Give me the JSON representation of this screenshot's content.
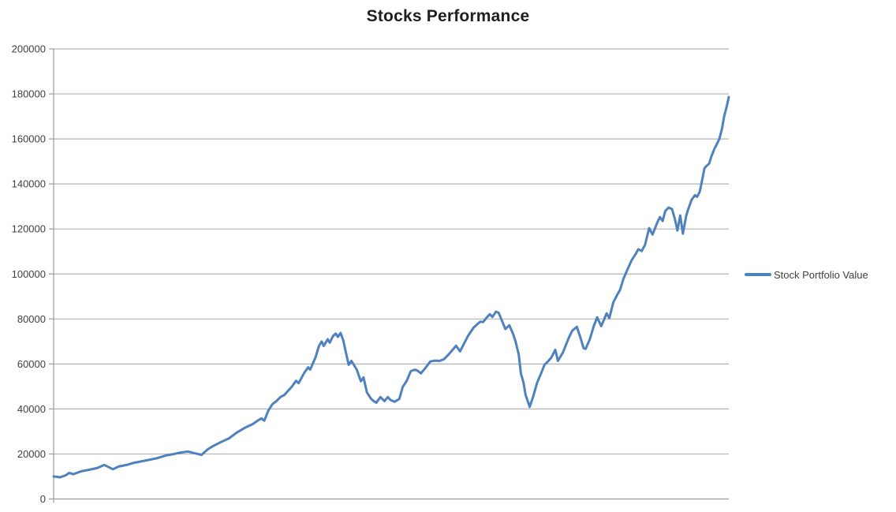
{
  "chart_data": {
    "type": "line",
    "title": "Stocks Performance",
    "xlabel": "",
    "ylabel": "",
    "grid": true,
    "legend_position": "right",
    "x_axis": {
      "tick_labels": []
    },
    "y_axis": {
      "min": 0,
      "max": 200000,
      "tick_step": 20000,
      "tick_labels": [
        "0",
        "20000",
        "40000",
        "60000",
        "80000",
        "100000",
        "120000",
        "140000",
        "160000",
        "180000",
        "200000"
      ]
    },
    "colors": {
      "background": "#ffffff",
      "line": "#4F81BD",
      "gridline": "#b3b3b3",
      "axis": "#9b9b9b",
      "tick_label": "#3f3f3f",
      "title": "#1f1f1f",
      "legend_text": "#3f3f3f"
    },
    "series": [
      {
        "name": "Stock Portfolio Value",
        "color": "#4F81BD",
        "x_unit": "percent-of-axis",
        "points": [
          [
            0,
            10000
          ],
          [
            0.6,
            9800
          ],
          [
            0.9,
            9600
          ],
          [
            1.8,
            10500
          ],
          [
            2.3,
            11600
          ],
          [
            2.9,
            11000
          ],
          [
            4.1,
            12300
          ],
          [
            5.3,
            13000
          ],
          [
            6.4,
            13700
          ],
          [
            7.5,
            15100
          ],
          [
            8.2,
            14100
          ],
          [
            8.8,
            13200
          ],
          [
            9.6,
            14400
          ],
          [
            10.8,
            15100
          ],
          [
            11.9,
            16100
          ],
          [
            13.1,
            16800
          ],
          [
            14.3,
            17500
          ],
          [
            15.4,
            18200
          ],
          [
            16.6,
            19300
          ],
          [
            17.8,
            20000
          ],
          [
            18.9,
            20700
          ],
          [
            19.9,
            21100
          ],
          [
            20.8,
            20400
          ],
          [
            21.9,
            19600
          ],
          [
            22.8,
            22000
          ],
          [
            23.6,
            23500
          ],
          [
            24.8,
            25300
          ],
          [
            26.0,
            27000
          ],
          [
            27.1,
            29500
          ],
          [
            28.3,
            31600
          ],
          [
            29.5,
            33300
          ],
          [
            30.3,
            35000
          ],
          [
            30.8,
            35800
          ],
          [
            31.2,
            34800
          ],
          [
            31.8,
            39300
          ],
          [
            32.4,
            42100
          ],
          [
            33.0,
            43500
          ],
          [
            33.6,
            45300
          ],
          [
            34.2,
            46300
          ],
          [
            34.7,
            48000
          ],
          [
            35.3,
            50000
          ],
          [
            35.9,
            52500
          ],
          [
            36.3,
            51500
          ],
          [
            37.1,
            56000
          ],
          [
            37.7,
            58500
          ],
          [
            38.0,
            57500
          ],
          [
            38.8,
            63000
          ],
          [
            39.3,
            68000
          ],
          [
            39.7,
            70000
          ],
          [
            40.0,
            68000
          ],
          [
            40.6,
            71000
          ],
          [
            40.9,
            69500
          ],
          [
            41.4,
            72500
          ],
          [
            41.8,
            73500
          ],
          [
            42.1,
            72000
          ],
          [
            42.5,
            73800
          ],
          [
            42.9,
            70500
          ],
          [
            43.3,
            65000
          ],
          [
            43.7,
            59600
          ],
          [
            44.1,
            61400
          ],
          [
            44.9,
            57500
          ],
          [
            45.5,
            52300
          ],
          [
            45.9,
            54000
          ],
          [
            46.4,
            47400
          ],
          [
            47.0,
            44600
          ],
          [
            47.4,
            43500
          ],
          [
            47.8,
            42800
          ],
          [
            48.4,
            45300
          ],
          [
            49.0,
            43500
          ],
          [
            49.5,
            45300
          ],
          [
            49.9,
            44000
          ],
          [
            50.5,
            43200
          ],
          [
            51.2,
            44500
          ],
          [
            51.7,
            49800
          ],
          [
            52.3,
            52500
          ],
          [
            52.9,
            56800
          ],
          [
            53.5,
            57500
          ],
          [
            53.9,
            57000
          ],
          [
            54.4,
            55800
          ],
          [
            55.0,
            58000
          ],
          [
            55.8,
            61100
          ],
          [
            56.5,
            61500
          ],
          [
            57.2,
            61400
          ],
          [
            57.8,
            62100
          ],
          [
            58.4,
            63900
          ],
          [
            59.1,
            66300
          ],
          [
            59.6,
            68100
          ],
          [
            60.2,
            65600
          ],
          [
            60.8,
            69100
          ],
          [
            61.4,
            72600
          ],
          [
            62.2,
            76100
          ],
          [
            62.7,
            77500
          ],
          [
            63.2,
            78800
          ],
          [
            63.6,
            78600
          ],
          [
            64.1,
            80500
          ],
          [
            64.6,
            82100
          ],
          [
            65.0,
            80900
          ],
          [
            65.5,
            83200
          ],
          [
            65.9,
            82800
          ],
          [
            66.3,
            80000
          ],
          [
            66.9,
            75500
          ],
          [
            67.5,
            77200
          ],
          [
            68.1,
            73000
          ],
          [
            68.4,
            70200
          ],
          [
            68.9,
            64000
          ],
          [
            69.2,
            55800
          ],
          [
            69.6,
            51600
          ],
          [
            69.9,
            46300
          ],
          [
            70.3,
            42800
          ],
          [
            70.5,
            40900
          ],
          [
            71.0,
            45300
          ],
          [
            71.6,
            51600
          ],
          [
            72.2,
            55800
          ],
          [
            72.7,
            59600
          ],
          [
            73.3,
            61400
          ],
          [
            73.7,
            62800
          ],
          [
            74.3,
            66300
          ],
          [
            74.7,
            61400
          ],
          [
            75.4,
            64900
          ],
          [
            76.3,
            71600
          ],
          [
            76.8,
            74700
          ],
          [
            77.5,
            76500
          ],
          [
            78.0,
            71900
          ],
          [
            78.5,
            67000
          ],
          [
            78.8,
            66700
          ],
          [
            79.4,
            70900
          ],
          [
            80.0,
            76800
          ],
          [
            80.5,
            80700
          ],
          [
            81.1,
            76800
          ],
          [
            81.5,
            79500
          ],
          [
            81.9,
            82500
          ],
          [
            82.3,
            80400
          ],
          [
            82.9,
            87400
          ],
          [
            83.5,
            90900
          ],
          [
            83.9,
            93000
          ],
          [
            84.4,
            97900
          ],
          [
            85.0,
            102000
          ],
          [
            85.6,
            106000
          ],
          [
            86.2,
            108800
          ],
          [
            86.6,
            111000
          ],
          [
            87.1,
            110200
          ],
          [
            87.6,
            113000
          ],
          [
            88.2,
            120400
          ],
          [
            88.7,
            117500
          ],
          [
            89.4,
            122800
          ],
          [
            89.8,
            125300
          ],
          [
            90.2,
            123500
          ],
          [
            90.6,
            128000
          ],
          [
            91.1,
            129500
          ],
          [
            91.6,
            128800
          ],
          [
            92.0,
            124600
          ],
          [
            92.4,
            119300
          ],
          [
            92.8,
            126000
          ],
          [
            93.2,
            117900
          ],
          [
            93.7,
            126000
          ],
          [
            94.0,
            128800
          ],
          [
            94.5,
            133000
          ],
          [
            95.0,
            135000
          ],
          [
            95.3,
            134300
          ],
          [
            95.7,
            136500
          ],
          [
            96.0,
            141000
          ],
          [
            96.4,
            147000
          ],
          [
            96.7,
            148000
          ],
          [
            97.1,
            149100
          ],
          [
            97.4,
            152000
          ],
          [
            97.9,
            155800
          ],
          [
            98.2,
            157500
          ],
          [
            98.6,
            160000
          ],
          [
            99.0,
            164500
          ],
          [
            99.3,
            169800
          ],
          [
            99.7,
            174400
          ],
          [
            100,
            178600
          ]
        ]
      }
    ]
  },
  "legend": {
    "label": "Stock Portfolio Value"
  }
}
